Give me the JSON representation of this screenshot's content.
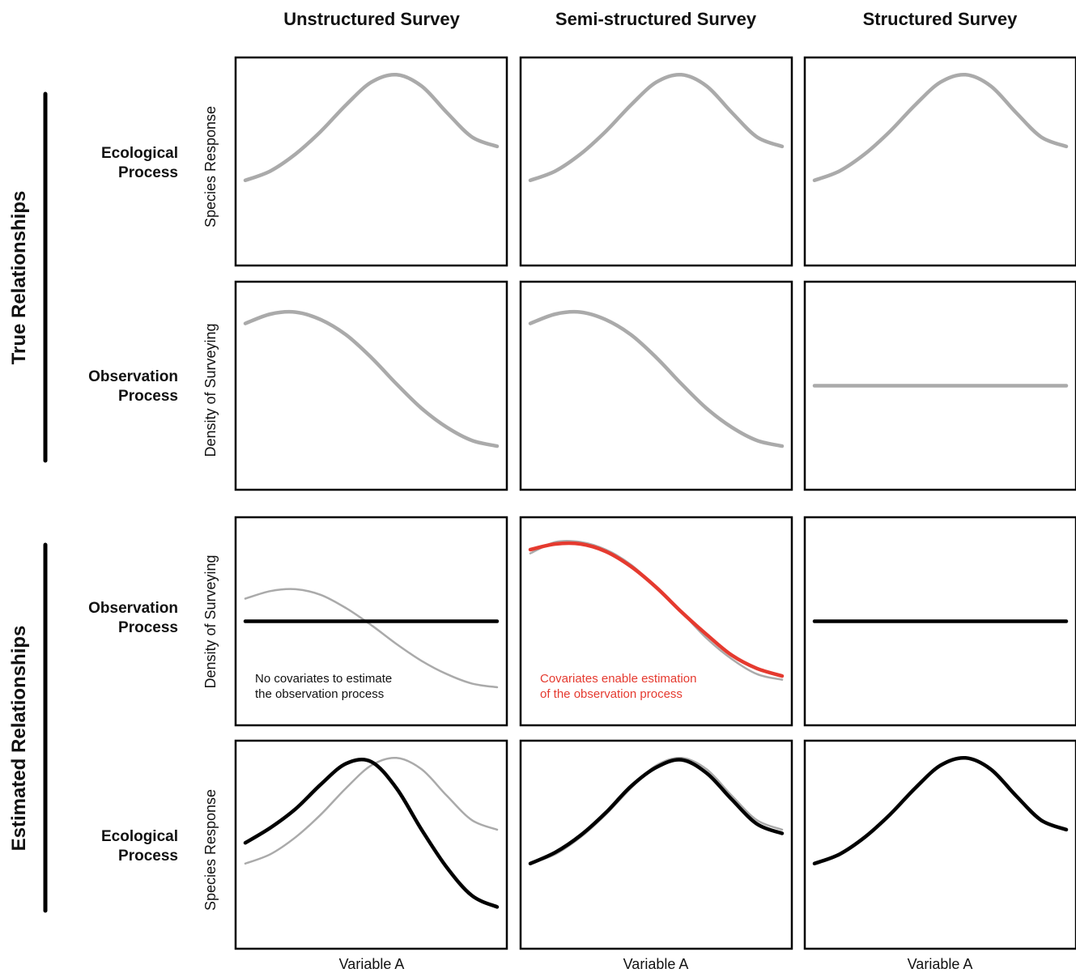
{
  "columns": [
    "Unstructured Survey",
    "Semi-structured Survey",
    "Structured Survey"
  ],
  "groups": {
    "true": "True Relationships",
    "estimated": "Estimated Relationships"
  },
  "rows": [
    {
      "line1": "Ecological",
      "line2": "Process",
      "ylabel": "Species Response"
    },
    {
      "line1": "Observation",
      "line2": "Process",
      "ylabel": "Density of Surveying"
    },
    {
      "line1": "Observation",
      "line2": "Process",
      "ylabel": "Density of Surveying"
    },
    {
      "line1": "Ecological",
      "line2": "Process",
      "ylabel": "Species Response"
    }
  ],
  "xlabel": "Variable A",
  "notes": {
    "unstructured": {
      "line1": "No covariates to estimate",
      "line2": "the observation process"
    },
    "semi": {
      "line1": "Covariates enable estimation",
      "line2": "of the observation process"
    }
  },
  "colors": {
    "true_curve": "#aaaaaa",
    "estimated_curve": "#000000",
    "highlight": "#e53a2f",
    "frame": "#000000"
  },
  "chart_data": {
    "type": "line",
    "x_range": [
      0,
      1
    ],
    "y_range": [
      0,
      1
    ],
    "note": "Schematic curves; x is Variable A (0-1), y is relative response (0-1), no tick labels shown.",
    "panels": [
      {
        "row": 0,
        "col": 0,
        "series": [
          {
            "style": "true",
            "points": [
              [
                0,
                0.4
              ],
              [
                0.1,
                0.45
              ],
              [
                0.2,
                0.54
              ],
              [
                0.3,
                0.66
              ],
              [
                0.4,
                0.8
              ],
              [
                0.5,
                0.92
              ],
              [
                0.6,
                0.96
              ],
              [
                0.7,
                0.9
              ],
              [
                0.8,
                0.76
              ],
              [
                0.9,
                0.63
              ],
              [
                1,
                0.58
              ]
            ]
          }
        ]
      },
      {
        "row": 0,
        "col": 1,
        "series": [
          {
            "style": "true",
            "points": [
              [
                0,
                0.4
              ],
              [
                0.1,
                0.45
              ],
              [
                0.2,
                0.54
              ],
              [
                0.3,
                0.66
              ],
              [
                0.4,
                0.8
              ],
              [
                0.5,
                0.92
              ],
              [
                0.6,
                0.96
              ],
              [
                0.7,
                0.9
              ],
              [
                0.8,
                0.76
              ],
              [
                0.9,
                0.63
              ],
              [
                1,
                0.58
              ]
            ]
          }
        ]
      },
      {
        "row": 0,
        "col": 2,
        "series": [
          {
            "style": "true",
            "points": [
              [
                0,
                0.4
              ],
              [
                0.1,
                0.45
              ],
              [
                0.2,
                0.54
              ],
              [
                0.3,
                0.66
              ],
              [
                0.4,
                0.8
              ],
              [
                0.5,
                0.92
              ],
              [
                0.6,
                0.96
              ],
              [
                0.7,
                0.9
              ],
              [
                0.8,
                0.76
              ],
              [
                0.9,
                0.63
              ],
              [
                1,
                0.58
              ]
            ]
          }
        ]
      },
      {
        "row": 1,
        "col": 0,
        "series": [
          {
            "style": "true",
            "points": [
              [
                0,
                0.83
              ],
              [
                0.1,
                0.88
              ],
              [
                0.2,
                0.89
              ],
              [
                0.3,
                0.85
              ],
              [
                0.4,
                0.77
              ],
              [
                0.5,
                0.65
              ],
              [
                0.6,
                0.51
              ],
              [
                0.7,
                0.38
              ],
              [
                0.8,
                0.28
              ],
              [
                0.9,
                0.21
              ],
              [
                1,
                0.18
              ]
            ]
          }
        ]
      },
      {
        "row": 1,
        "col": 1,
        "series": [
          {
            "style": "true",
            "points": [
              [
                0,
                0.83
              ],
              [
                0.1,
                0.88
              ],
              [
                0.2,
                0.89
              ],
              [
                0.3,
                0.85
              ],
              [
                0.4,
                0.77
              ],
              [
                0.5,
                0.65
              ],
              [
                0.6,
                0.51
              ],
              [
                0.7,
                0.38
              ],
              [
                0.8,
                0.28
              ],
              [
                0.9,
                0.21
              ],
              [
                1,
                0.18
              ]
            ]
          }
        ]
      },
      {
        "row": 1,
        "col": 2,
        "series": [
          {
            "style": "true",
            "points": [
              [
                0,
                0.5
              ],
              [
                1,
                0.5
              ]
            ]
          }
        ]
      },
      {
        "row": 2,
        "col": 0,
        "series": [
          {
            "style": "true_thin",
            "points": [
              [
                0,
                0.62
              ],
              [
                0.1,
                0.66
              ],
              [
                0.2,
                0.67
              ],
              [
                0.3,
                0.64
              ],
              [
                0.4,
                0.57
              ],
              [
                0.5,
                0.48
              ],
              [
                0.6,
                0.38
              ],
              [
                0.7,
                0.29
              ],
              [
                0.8,
                0.22
              ],
              [
                0.9,
                0.17
              ],
              [
                1,
                0.15
              ]
            ]
          },
          {
            "style": "estimated",
            "points": [
              [
                0,
                0.5
              ],
              [
                1,
                0.5
              ]
            ]
          }
        ]
      },
      {
        "row": 2,
        "col": 1,
        "series": [
          {
            "style": "true_thin",
            "points": [
              [
                0,
                0.86
              ],
              [
                0.1,
                0.92
              ],
              [
                0.2,
                0.92
              ],
              [
                0.3,
                0.88
              ],
              [
                0.4,
                0.8
              ],
              [
                0.5,
                0.68
              ],
              [
                0.6,
                0.55
              ],
              [
                0.7,
                0.41
              ],
              [
                0.8,
                0.3
              ],
              [
                0.9,
                0.22
              ],
              [
                1,
                0.19
              ]
            ]
          },
          {
            "style": "highlight",
            "points": [
              [
                0,
                0.88
              ],
              [
                0.1,
                0.91
              ],
              [
                0.2,
                0.91
              ],
              [
                0.3,
                0.87
              ],
              [
                0.4,
                0.79
              ],
              [
                0.5,
                0.68
              ],
              [
                0.6,
                0.55
              ],
              [
                0.7,
                0.43
              ],
              [
                0.8,
                0.32
              ],
              [
                0.9,
                0.25
              ],
              [
                1,
                0.21
              ]
            ]
          }
        ]
      },
      {
        "row": 2,
        "col": 2,
        "series": [
          {
            "style": "estimated",
            "points": [
              [
                0,
                0.5
              ],
              [
                1,
                0.5
              ]
            ]
          }
        ]
      },
      {
        "row": 3,
        "col": 0,
        "series": [
          {
            "style": "true_thin",
            "points": [
              [
                0,
                0.4
              ],
              [
                0.1,
                0.45
              ],
              [
                0.2,
                0.54
              ],
              [
                0.3,
                0.66
              ],
              [
                0.4,
                0.8
              ],
              [
                0.5,
                0.92
              ],
              [
                0.6,
                0.96
              ],
              [
                0.7,
                0.9
              ],
              [
                0.8,
                0.76
              ],
              [
                0.9,
                0.63
              ],
              [
                1,
                0.58
              ]
            ]
          },
          {
            "style": "estimated",
            "points": [
              [
                0,
                0.51
              ],
              [
                0.1,
                0.59
              ],
              [
                0.2,
                0.69
              ],
              [
                0.3,
                0.82
              ],
              [
                0.4,
                0.93
              ],
              [
                0.5,
                0.94
              ],
              [
                0.6,
                0.8
              ],
              [
                0.7,
                0.58
              ],
              [
                0.8,
                0.38
              ],
              [
                0.9,
                0.23
              ],
              [
                1,
                0.17
              ]
            ]
          }
        ]
      },
      {
        "row": 3,
        "col": 1,
        "series": [
          {
            "style": "true_thin",
            "points": [
              [
                0,
                0.4
              ],
              [
                0.1,
                0.45
              ],
              [
                0.2,
                0.54
              ],
              [
                0.3,
                0.66
              ],
              [
                0.4,
                0.8
              ],
              [
                0.5,
                0.92
              ],
              [
                0.6,
                0.96
              ],
              [
                0.7,
                0.9
              ],
              [
                0.8,
                0.76
              ],
              [
                0.9,
                0.63
              ],
              [
                1,
                0.58
              ]
            ]
          },
          {
            "style": "estimated",
            "points": [
              [
                0,
                0.4
              ],
              [
                0.1,
                0.46
              ],
              [
                0.2,
                0.55
              ],
              [
                0.3,
                0.67
              ],
              [
                0.4,
                0.81
              ],
              [
                0.5,
                0.91
              ],
              [
                0.6,
                0.95
              ],
              [
                0.7,
                0.88
              ],
              [
                0.8,
                0.74
              ],
              [
                0.9,
                0.61
              ],
              [
                1,
                0.56
              ]
            ]
          }
        ]
      },
      {
        "row": 3,
        "col": 2,
        "series": [
          {
            "style": "estimated",
            "points": [
              [
                0,
                0.4
              ],
              [
                0.1,
                0.45
              ],
              [
                0.2,
                0.54
              ],
              [
                0.3,
                0.66
              ],
              [
                0.4,
                0.8
              ],
              [
                0.5,
                0.92
              ],
              [
                0.6,
                0.96
              ],
              [
                0.7,
                0.9
              ],
              [
                0.8,
                0.76
              ],
              [
                0.9,
                0.63
              ],
              [
                1,
                0.58
              ]
            ]
          }
        ]
      }
    ]
  }
}
